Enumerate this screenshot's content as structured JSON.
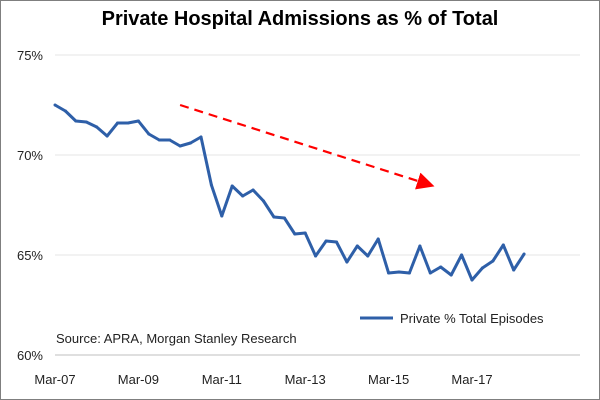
{
  "chart_data": {
    "type": "line",
    "title": "Private Hospital Admissions as % of Total",
    "xlabel": "",
    "ylabel": "",
    "x_ticks": [
      "Mar-07",
      "Mar-09",
      "Mar-11",
      "Mar-13",
      "Mar-15",
      "Mar-17"
    ],
    "y_ticks": [
      "60%",
      "65%",
      "70%",
      "75%"
    ],
    "ylim": [
      60,
      75
    ],
    "grid": true,
    "legend_position": "bottom-right",
    "source": "Source: APRA, Morgan Stanley Research",
    "series": [
      {
        "name": "Private % Total Episodes",
        "color": "#2e5fa8",
        "points": [
          {
            "x": "Mar-07",
            "y": 72.5
          },
          {
            "x": "Jun-07",
            "y": 72.2
          },
          {
            "x": "Sep-07",
            "y": 71.7
          },
          {
            "x": "Dec-07",
            "y": 71.65
          },
          {
            "x": "Mar-08",
            "y": 71.4
          },
          {
            "x": "Jun-08",
            "y": 70.95
          },
          {
            "x": "Sep-08",
            "y": 71.6
          },
          {
            "x": "Dec-08",
            "y": 71.6
          },
          {
            "x": "Mar-09",
            "y": 71.7
          },
          {
            "x": "Jun-09",
            "y": 71.05
          },
          {
            "x": "Sep-09",
            "y": 70.75
          },
          {
            "x": "Dec-09",
            "y": 70.75
          },
          {
            "x": "Mar-10",
            "y": 70.45
          },
          {
            "x": "Jun-10",
            "y": 70.6
          },
          {
            "x": "Sep-10",
            "y": 70.9
          },
          {
            "x": "Dec-10",
            "y": 68.5
          },
          {
            "x": "Mar-11",
            "y": 66.95
          },
          {
            "x": "Jun-11",
            "y": 68.45
          },
          {
            "x": "Sep-11",
            "y": 67.95
          },
          {
            "x": "Dec-11",
            "y": 68.25
          },
          {
            "x": "Mar-12",
            "y": 67.7
          },
          {
            "x": "Jun-12",
            "y": 66.9
          },
          {
            "x": "Sep-12",
            "y": 66.85
          },
          {
            "x": "Dec-12",
            "y": 66.05
          },
          {
            "x": "Mar-13",
            "y": 66.1
          },
          {
            "x": "Jun-13",
            "y": 64.95
          },
          {
            "x": "Sep-13",
            "y": 65.7
          },
          {
            "x": "Dec-13",
            "y": 65.65
          },
          {
            "x": "Mar-14",
            "y": 64.65
          },
          {
            "x": "Jun-14",
            "y": 65.45
          },
          {
            "x": "Sep-14",
            "y": 64.95
          },
          {
            "x": "Dec-14",
            "y": 65.8
          },
          {
            "x": "Mar-15",
            "y": 64.1
          },
          {
            "x": "Jun-15",
            "y": 64.15
          },
          {
            "x": "Sep-15",
            "y": 64.1
          },
          {
            "x": "Dec-15",
            "y": 65.45
          },
          {
            "x": "Mar-16",
            "y": 64.1
          },
          {
            "x": "Jun-16",
            "y": 64.4
          },
          {
            "x": "Sep-16",
            "y": 64.0
          },
          {
            "x": "Dec-16",
            "y": 65.0
          },
          {
            "x": "Mar-17",
            "y": 63.75
          },
          {
            "x": "Jun-17",
            "y": 64.35
          },
          {
            "x": "Sep-17",
            "y": 64.7
          },
          {
            "x": "Dec-17",
            "y": 65.5
          },
          {
            "x": "Mar-18",
            "y": 64.25
          },
          {
            "x": "Jun-18",
            "y": 65.05
          }
        ]
      }
    ],
    "annotations": [
      {
        "type": "dashed-arrow",
        "color": "#ff0000",
        "from": {
          "x": "Mar-10",
          "y": 72.5
        },
        "to": {
          "x": "Mar-16",
          "y": 68.5
        }
      }
    ]
  }
}
